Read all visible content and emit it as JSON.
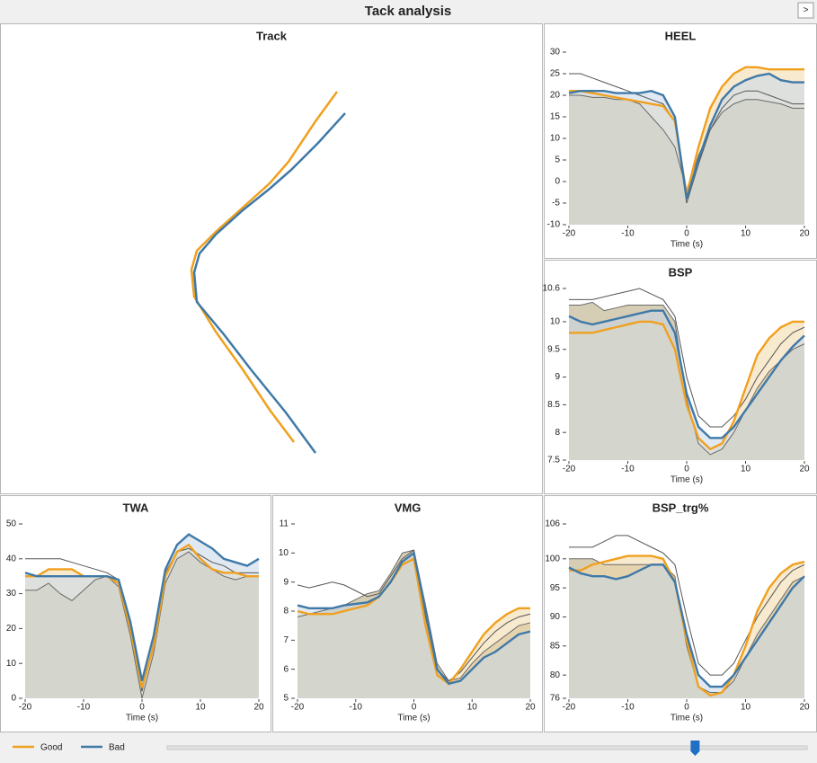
{
  "window": {
    "title": "Tack analysis",
    "button": ">"
  },
  "legend": [
    {
      "name": "Good",
      "color": "#f0a01e"
    },
    {
      "name": "Bad",
      "color": "#3f79a8"
    }
  ],
  "slider": {
    "min": -20,
    "max": 20,
    "value": 13
  },
  "chart_data": [
    {
      "type": "track",
      "title": "Track",
      "xlim": [
        0,
        100
      ],
      "ylim": [
        0,
        160
      ],
      "series": [
        {
          "color": "#f0a01e",
          "x": [
            75,
            67,
            57,
            50,
            40,
            30,
            23,
            21,
            22,
            30,
            40,
            50,
            59
          ],
          "values": [
            146,
            135,
            120,
            112,
            103,
            94,
            87,
            80,
            70,
            57,
            43,
            28,
            16
          ]
        },
        {
          "color": "#3f79a8",
          "x": [
            78,
            68,
            58,
            50,
            40,
            30,
            24,
            22,
            23,
            33,
            43,
            56,
            67
          ],
          "values": [
            138,
            127,
            117,
            110,
            102,
            93,
            86,
            79,
            68,
            56,
            43,
            27,
            12
          ]
        }
      ]
    },
    {
      "type": "line",
      "title": "HEEL",
      "xlabel": "Time (s)",
      "xlim": [
        -20,
        20
      ],
      "xticks": [
        -20,
        -10,
        0,
        10,
        20
      ],
      "ylim": [
        -10,
        30
      ],
      "yticks": [
        -10,
        -5,
        0,
        5,
        10,
        15,
        20,
        25,
        30
      ],
      "x": [
        -20,
        -18,
        -16,
        -14,
        -12,
        -10,
        -8,
        -6,
        -4,
        -2,
        0,
        2,
        4,
        6,
        8,
        10,
        12,
        14,
        16,
        18,
        20
      ],
      "series": [
        {
          "color": "#6a6a6a",
          "fill": "#d6cdb5",
          "values": [
            20,
            20,
            19.5,
            19.5,
            19,
            19,
            18,
            15,
            12,
            8,
            -2,
            6,
            12,
            16,
            18,
            19,
            19,
            18.5,
            18,
            17,
            17
          ]
        },
        {
          "color": "#555555",
          "values": [
            25,
            25,
            24,
            23,
            22,
            21,
            20,
            19,
            18,
            14,
            -5,
            4,
            12,
            17,
            20,
            21,
            21,
            20,
            19,
            18,
            18
          ]
        },
        {
          "color": "#f0a01e",
          "fill": "#f3d9a8",
          "values": [
            21,
            21,
            20.5,
            20,
            19.5,
            19,
            18.5,
            18,
            17.5,
            14,
            -3,
            8,
            17,
            22,
            25,
            26.5,
            26.5,
            26,
            26,
            26,
            26
          ]
        },
        {
          "color": "#3f79a8",
          "fill": "#c7d7e8",
          "values": [
            20.5,
            21,
            21,
            21,
            20.5,
            20.5,
            20.5,
            21,
            20,
            15,
            -4,
            5,
            13,
            19,
            22,
            23.5,
            24.5,
            25,
            23.5,
            23,
            23
          ]
        }
      ]
    },
    {
      "type": "line",
      "title": "BSP",
      "xlabel": "Time (s)",
      "xlim": [
        -20,
        20
      ],
      "xticks": [
        -20,
        -10,
        0,
        10,
        20
      ],
      "ylim": [
        7.5,
        10.6
      ],
      "yticks": [
        7.5,
        8,
        8.5,
        9,
        9.5,
        10,
        10.6
      ],
      "x": [
        -20,
        -18,
        -16,
        -14,
        -12,
        -10,
        -8,
        -6,
        -4,
        -2,
        0,
        2,
        4,
        6,
        8,
        10,
        12,
        14,
        16,
        18,
        20
      ],
      "series": [
        {
          "color": "#6a6a6a",
          "fill": "#d6cdb5",
          "values": [
            10.3,
            10.3,
            10.35,
            10.2,
            10.25,
            10.3,
            10.3,
            10.3,
            10.3,
            10,
            8.6,
            7.8,
            7.6,
            7.7,
            8,
            8.4,
            8.8,
            9.1,
            9.3,
            9.5,
            9.6
          ]
        },
        {
          "color": "#555555",
          "values": [
            10.4,
            10.4,
            10.4,
            10.45,
            10.5,
            10.55,
            10.6,
            10.5,
            10.4,
            10.1,
            9,
            8.3,
            8.1,
            8.1,
            8.3,
            8.6,
            9,
            9.3,
            9.6,
            9.8,
            9.9
          ]
        },
        {
          "color": "#f0a01e",
          "fill": "#f3d9a8",
          "values": [
            9.8,
            9.8,
            9.8,
            9.85,
            9.9,
            9.95,
            10,
            10,
            9.95,
            9.5,
            8.5,
            7.9,
            7.7,
            7.8,
            8.2,
            8.8,
            9.4,
            9.7,
            9.9,
            10,
            10
          ]
        },
        {
          "color": "#3f79a8",
          "fill": "#c7d7e8",
          "values": [
            10.1,
            10,
            9.95,
            10,
            10.05,
            10.1,
            10.15,
            10.2,
            10.2,
            9.8,
            8.7,
            8.1,
            7.9,
            7.9,
            8.1,
            8.4,
            8.7,
            9,
            9.3,
            9.55,
            9.75
          ]
        }
      ]
    },
    {
      "type": "line",
      "title": "TWA",
      "xlabel": "Time (s)",
      "xlim": [
        -20,
        20
      ],
      "xticks": [
        -20,
        -10,
        0,
        10,
        20
      ],
      "ylim": [
        0,
        50
      ],
      "yticks": [
        0,
        10,
        20,
        30,
        40,
        50
      ],
      "x": [
        -20,
        -18,
        -16,
        -14,
        -12,
        -10,
        -8,
        -6,
        -4,
        -2,
        0,
        2,
        4,
        6,
        8,
        10,
        12,
        14,
        16,
        18,
        20
      ],
      "series": [
        {
          "color": "#6a6a6a",
          "fill": "#d6cdb5",
          "values": [
            31,
            31,
            33,
            30,
            28,
            31,
            34,
            35,
            32,
            18,
            0,
            13,
            33,
            40,
            42,
            39,
            37,
            35,
            34,
            35,
            35
          ]
        },
        {
          "color": "#555555",
          "values": [
            40,
            40,
            40,
            40,
            39,
            38,
            37,
            36,
            34,
            20,
            2,
            16,
            36,
            42,
            43,
            41,
            39,
            38,
            36,
            36,
            36
          ]
        },
        {
          "color": "#f0a01e",
          "fill": "#f3d9a8",
          "values": [
            35,
            35,
            37,
            37,
            37,
            35,
            35,
            35,
            33,
            20,
            3,
            15,
            35,
            42,
            44,
            40,
            37,
            36,
            36,
            35,
            35
          ]
        },
        {
          "color": "#3f79a8",
          "fill": "#c7d7e8",
          "values": [
            36,
            35,
            35,
            35,
            35,
            35,
            35,
            35,
            34,
            22,
            5,
            18,
            37,
            44,
            47,
            45,
            43,
            40,
            39,
            38,
            40
          ]
        }
      ]
    },
    {
      "type": "line",
      "title": "VMG",
      "xlabel": "Time (s)",
      "xlim": [
        -20,
        20
      ],
      "xticks": [
        -20,
        -10,
        0,
        10,
        20
      ],
      "ylim": [
        5,
        11
      ],
      "yticks": [
        5,
        6,
        7,
        8,
        9,
        10,
        11
      ],
      "x": [
        -20,
        -18,
        -16,
        -14,
        -12,
        -10,
        -8,
        -6,
        -4,
        -2,
        0,
        2,
        4,
        6,
        8,
        10,
        12,
        14,
        16,
        18,
        20
      ],
      "series": [
        {
          "color": "#6a6a6a",
          "fill": "#d6cdb5",
          "values": [
            7.8,
            7.9,
            8,
            8.1,
            8.2,
            8.4,
            8.6,
            8.7,
            9.3,
            10,
            10.1,
            8.2,
            6.2,
            5.6,
            5.7,
            6.2,
            6.6,
            6.9,
            7.2,
            7.5,
            7.6
          ]
        },
        {
          "color": "#555555",
          "values": [
            8.9,
            8.8,
            8.9,
            9,
            8.9,
            8.7,
            8.5,
            8.6,
            9.2,
            9.8,
            10.1,
            7.8,
            6,
            5.6,
            5.9,
            6.4,
            6.9,
            7.3,
            7.6,
            7.8,
            7.9
          ]
        },
        {
          "color": "#f0a01e",
          "fill": "#f3d9a8",
          "values": [
            8,
            7.9,
            7.9,
            7.9,
            8,
            8.1,
            8.2,
            8.5,
            9,
            9.6,
            9.8,
            7.5,
            5.8,
            5.5,
            6,
            6.6,
            7.2,
            7.6,
            7.9,
            8.1,
            8.1
          ]
        },
        {
          "color": "#3f79a8",
          "fill": "#c7d7e8",
          "values": [
            8.2,
            8.1,
            8.1,
            8.1,
            8.2,
            8.25,
            8.3,
            8.5,
            9,
            9.7,
            10,
            8,
            6,
            5.5,
            5.6,
            6,
            6.4,
            6.6,
            6.9,
            7.2,
            7.3
          ]
        }
      ]
    },
    {
      "type": "line",
      "title": "BSP_trg%",
      "xlabel": "Time (s)",
      "xlim": [
        -20,
        20
      ],
      "xticks": [
        -20,
        -10,
        0,
        10,
        20
      ],
      "ylim": [
        76,
        106
      ],
      "yticks": [
        76,
        80,
        85,
        90,
        95,
        100,
        106
      ],
      "x": [
        -20,
        -18,
        -16,
        -14,
        -12,
        -10,
        -8,
        -6,
        -4,
        -2,
        0,
        2,
        4,
        6,
        8,
        10,
        12,
        14,
        16,
        18,
        20
      ],
      "series": [
        {
          "color": "#6a6a6a",
          "fill": "#d6cdb5",
          "values": [
            100,
            100,
            100,
            99,
            99,
            99,
            99,
            99,
            99,
            97,
            85,
            78,
            77,
            77,
            79,
            83,
            87,
            90,
            93,
            96,
            97
          ]
        },
        {
          "color": "#555555",
          "values": [
            102,
            102,
            102,
            103,
            104,
            104,
            103,
            102,
            101,
            99,
            90,
            82,
            80,
            80,
            82,
            86,
            90,
            93,
            96,
            98,
            99
          ]
        },
        {
          "color": "#f0a01e",
          "fill": "#f3d9a8",
          "values": [
            98,
            98,
            99,
            99.5,
            100,
            100.5,
            100.5,
            100.5,
            100,
            96,
            86,
            78,
            76.5,
            77,
            80,
            85,
            91,
            95,
            97.5,
            99,
            99.5
          ]
        },
        {
          "color": "#3f79a8",
          "fill": "#c7d7e8",
          "values": [
            98.5,
            97.5,
            97,
            97,
            96.5,
            97,
            98,
            99,
            99,
            96,
            87,
            80,
            78,
            78,
            80,
            83,
            86,
            89,
            92,
            95,
            97
          ]
        }
      ]
    }
  ]
}
